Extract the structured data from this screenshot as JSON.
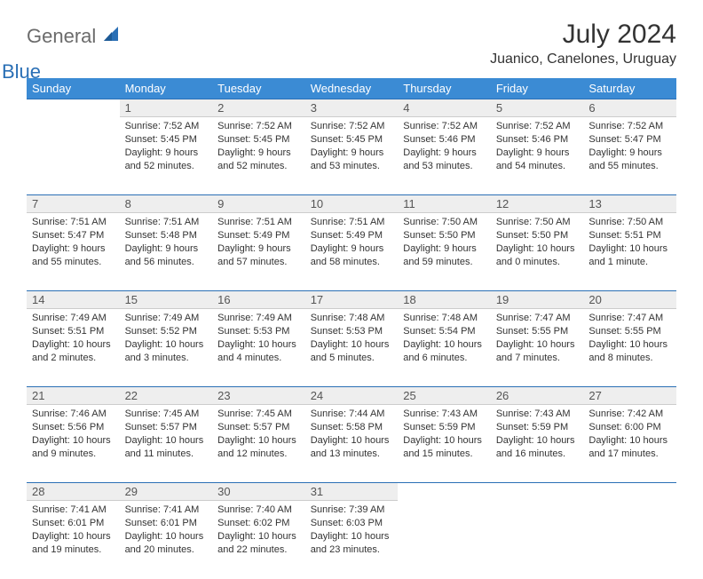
{
  "brand": {
    "general": "General",
    "blue": "Blue"
  },
  "title": "July 2024",
  "location": "Juanico, Canelones, Uruguay",
  "colors": {
    "header_bg": "#3b8bd4",
    "header_text": "#ffffff",
    "daynum_bg": "#eeeeee",
    "rule": "#2a6fb5",
    "logo_accent": "#2a6fb5",
    "logo_gray": "#6b6b6b"
  },
  "weekdays": [
    "Sunday",
    "Monday",
    "Tuesday",
    "Wednesday",
    "Thursday",
    "Friday",
    "Saturday"
  ],
  "start_day_index": 1,
  "days": [
    {
      "n": 1,
      "sunrise": "7:52 AM",
      "sunset": "5:45 PM",
      "daylight": "9 hours and 52 minutes."
    },
    {
      "n": 2,
      "sunrise": "7:52 AM",
      "sunset": "5:45 PM",
      "daylight": "9 hours and 52 minutes."
    },
    {
      "n": 3,
      "sunrise": "7:52 AM",
      "sunset": "5:45 PM",
      "daylight": "9 hours and 53 minutes."
    },
    {
      "n": 4,
      "sunrise": "7:52 AM",
      "sunset": "5:46 PM",
      "daylight": "9 hours and 53 minutes."
    },
    {
      "n": 5,
      "sunrise": "7:52 AM",
      "sunset": "5:46 PM",
      "daylight": "9 hours and 54 minutes."
    },
    {
      "n": 6,
      "sunrise": "7:52 AM",
      "sunset": "5:47 PM",
      "daylight": "9 hours and 55 minutes."
    },
    {
      "n": 7,
      "sunrise": "7:51 AM",
      "sunset": "5:47 PM",
      "daylight": "9 hours and 55 minutes."
    },
    {
      "n": 8,
      "sunrise": "7:51 AM",
      "sunset": "5:48 PM",
      "daylight": "9 hours and 56 minutes."
    },
    {
      "n": 9,
      "sunrise": "7:51 AM",
      "sunset": "5:49 PM",
      "daylight": "9 hours and 57 minutes."
    },
    {
      "n": 10,
      "sunrise": "7:51 AM",
      "sunset": "5:49 PM",
      "daylight": "9 hours and 58 minutes."
    },
    {
      "n": 11,
      "sunrise": "7:50 AM",
      "sunset": "5:50 PM",
      "daylight": "9 hours and 59 minutes."
    },
    {
      "n": 12,
      "sunrise": "7:50 AM",
      "sunset": "5:50 PM",
      "daylight": "10 hours and 0 minutes."
    },
    {
      "n": 13,
      "sunrise": "7:50 AM",
      "sunset": "5:51 PM",
      "daylight": "10 hours and 1 minute."
    },
    {
      "n": 14,
      "sunrise": "7:49 AM",
      "sunset": "5:51 PM",
      "daylight": "10 hours and 2 minutes."
    },
    {
      "n": 15,
      "sunrise": "7:49 AM",
      "sunset": "5:52 PM",
      "daylight": "10 hours and 3 minutes."
    },
    {
      "n": 16,
      "sunrise": "7:49 AM",
      "sunset": "5:53 PM",
      "daylight": "10 hours and 4 minutes."
    },
    {
      "n": 17,
      "sunrise": "7:48 AM",
      "sunset": "5:53 PM",
      "daylight": "10 hours and 5 minutes."
    },
    {
      "n": 18,
      "sunrise": "7:48 AM",
      "sunset": "5:54 PM",
      "daylight": "10 hours and 6 minutes."
    },
    {
      "n": 19,
      "sunrise": "7:47 AM",
      "sunset": "5:55 PM",
      "daylight": "10 hours and 7 minutes."
    },
    {
      "n": 20,
      "sunrise": "7:47 AM",
      "sunset": "5:55 PM",
      "daylight": "10 hours and 8 minutes."
    },
    {
      "n": 21,
      "sunrise": "7:46 AM",
      "sunset": "5:56 PM",
      "daylight": "10 hours and 9 minutes."
    },
    {
      "n": 22,
      "sunrise": "7:45 AM",
      "sunset": "5:57 PM",
      "daylight": "10 hours and 11 minutes."
    },
    {
      "n": 23,
      "sunrise": "7:45 AM",
      "sunset": "5:57 PM",
      "daylight": "10 hours and 12 minutes."
    },
    {
      "n": 24,
      "sunrise": "7:44 AM",
      "sunset": "5:58 PM",
      "daylight": "10 hours and 13 minutes."
    },
    {
      "n": 25,
      "sunrise": "7:43 AM",
      "sunset": "5:59 PM",
      "daylight": "10 hours and 15 minutes."
    },
    {
      "n": 26,
      "sunrise": "7:43 AM",
      "sunset": "5:59 PM",
      "daylight": "10 hours and 16 minutes."
    },
    {
      "n": 27,
      "sunrise": "7:42 AM",
      "sunset": "6:00 PM",
      "daylight": "10 hours and 17 minutes."
    },
    {
      "n": 28,
      "sunrise": "7:41 AM",
      "sunset": "6:01 PM",
      "daylight": "10 hours and 19 minutes."
    },
    {
      "n": 29,
      "sunrise": "7:41 AM",
      "sunset": "6:01 PM",
      "daylight": "10 hours and 20 minutes."
    },
    {
      "n": 30,
      "sunrise": "7:40 AM",
      "sunset": "6:02 PM",
      "daylight": "10 hours and 22 minutes."
    },
    {
      "n": 31,
      "sunrise": "7:39 AM",
      "sunset": "6:03 PM",
      "daylight": "10 hours and 23 minutes."
    }
  ],
  "labels": {
    "sunrise": "Sunrise:",
    "sunset": "Sunset:",
    "daylight": "Daylight:"
  }
}
